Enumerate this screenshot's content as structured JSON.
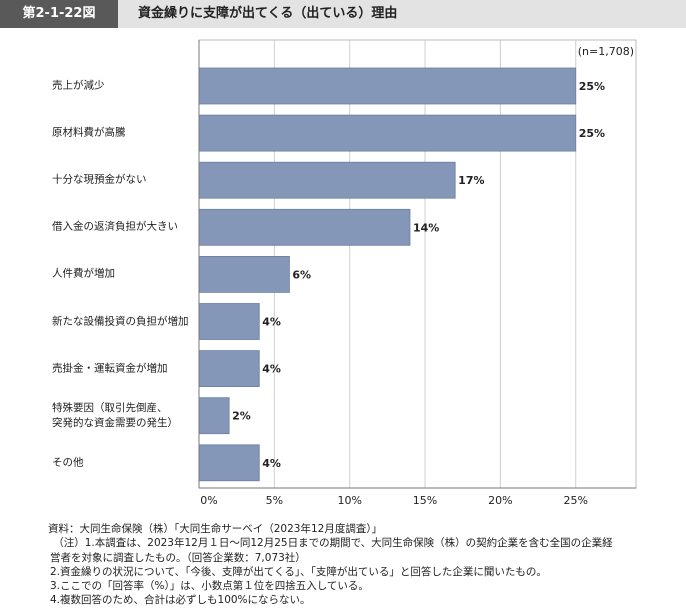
{
  "header": {
    "figure_number": "第2-1-22図",
    "title": "資金繰りに支障が出てくる（出ている）理由"
  },
  "chart_data": {
    "type": "hbar",
    "annotation": "(n=1,708)",
    "categories": [
      "売上が減少",
      "原材料費が高騰",
      "十分な現預金がない",
      "借入金の返済負担が大きい",
      "人件費が増加",
      "新たな設備投資の負担が増加",
      "売掛金・運転資金が増加",
      "特殊要因（取引先倒産、\n突発的な資金需要の発生）",
      "その他"
    ],
    "values": [
      25,
      25,
      17,
      14,
      6,
      4,
      4,
      2,
      4
    ],
    "value_labels": [
      "25%",
      "25%",
      "17%",
      "14%",
      "6%",
      "4%",
      "4%",
      "2%",
      "4%"
    ],
    "color": "#8597b8",
    "xlim": [
      0,
      29
    ],
    "xticks": [
      {
        "value": 0,
        "label": "0%"
      },
      {
        "value": 5,
        "label": "5%"
      },
      {
        "value": 10,
        "label": "10%"
      },
      {
        "value": 15,
        "label": "15%"
      },
      {
        "value": 20,
        "label": "20%"
      },
      {
        "value": 25,
        "label": "25%"
      }
    ],
    "grid": true
  },
  "notes": [
    "資料：大同生命保険（株）「大同生命サーベイ（2023年12月度調査）」",
    "　（注）1.本調査は、2023年12月１日～同12月25日までの期間で、大同生命保険（株）の契約企業を含む全国の企業経",
    "営者を対象に調査したもの。（回答企業数：7,073社）",
    "2.資金繰りの状況について、「今後、支障が出てくる」、「支障が出ている」と回答した企業に聞いたもの。",
    "3.ここでの「回答率（%）」は、小数点第１位を四捨五入している。",
    "4.複数回答のため、合計は必ずしも100%にならない。"
  ]
}
